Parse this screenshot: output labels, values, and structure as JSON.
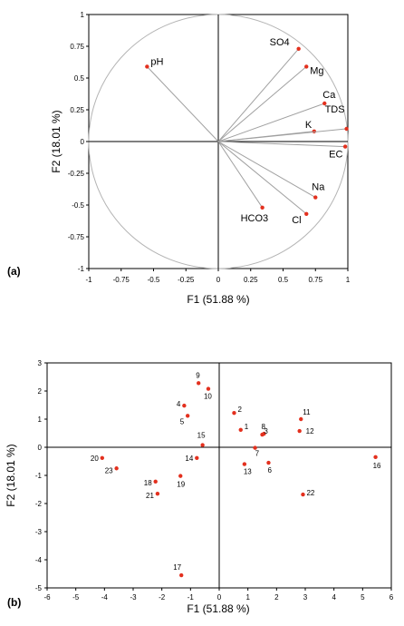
{
  "chart_data": [
    {
      "type": "correlation-circle",
      "panel_label": "(a)",
      "xlabel": "F1 (51.88 %)",
      "ylabel": "F2 (18.01 %)",
      "xlim": [
        -1,
        1
      ],
      "ylim": [
        -1,
        1
      ],
      "xticks": [
        "-1",
        "-0.75",
        "-0.5",
        "-0.25",
        "0",
        "0.25",
        "0.5",
        "0.75",
        "1"
      ],
      "yticks": [
        "1",
        "0.75",
        "0.5",
        "0.25",
        "0",
        "-0.25",
        "-0.5",
        "-0.75",
        "-1"
      ],
      "variables": [
        {
          "label": "pH",
          "x": -0.55,
          "y": 0.59
        },
        {
          "label": "SO4",
          "x": 0.62,
          "y": 0.73
        },
        {
          "label": "Mg",
          "x": 0.68,
          "y": 0.59
        },
        {
          "label": "Ca",
          "x": 0.82,
          "y": 0.3
        },
        {
          "label": "K",
          "x": 0.74,
          "y": 0.08
        },
        {
          "label": "TDS",
          "x": 0.99,
          "y": 0.1
        },
        {
          "label": "EC",
          "x": 0.98,
          "y": -0.04
        },
        {
          "label": "Na",
          "x": 0.75,
          "y": -0.44
        },
        {
          "label": "Cl",
          "x": 0.68,
          "y": -0.57
        },
        {
          "label": "HCO3",
          "x": 0.34,
          "y": -0.52
        }
      ],
      "marker_color": "#e3301e",
      "line_color": "#a0a0a0"
    },
    {
      "type": "scatter",
      "panel_label": "(b)",
      "xlabel": "F1 (51.88 %)",
      "ylabel": "F2 (18.01 %)",
      "xlim": [
        -6,
        6
      ],
      "ylim": [
        -5,
        3
      ],
      "xticks": [
        "-6",
        "-5",
        "-4",
        "-3",
        "-2",
        "-1",
        "0",
        "1",
        "2",
        "3",
        "4",
        "5",
        "6"
      ],
      "yticks": [
        "3",
        "2",
        "1",
        "0",
        "-1",
        "-2",
        "-3",
        "-4",
        "-5"
      ],
      "points": [
        {
          "label": "1",
          "x": 0.75,
          "y": 0.62
        },
        {
          "label": "2",
          "x": 0.52,
          "y": 1.22
        },
        {
          "label": "3",
          "x": 1.56,
          "y": 0.48
        },
        {
          "label": "4",
          "x": -1.22,
          "y": 1.48
        },
        {
          "label": "5",
          "x": -1.1,
          "y": 1.12
        },
        {
          "label": "6",
          "x": 1.72,
          "y": -0.55
        },
        {
          "label": "7",
          "x": 1.25,
          "y": -0.02
        },
        {
          "label": "8",
          "x": 1.5,
          "y": 0.45
        },
        {
          "label": "9",
          "x": -0.72,
          "y": 2.28
        },
        {
          "label": "10",
          "x": -0.38,
          "y": 2.08
        },
        {
          "label": "11",
          "x": 2.85,
          "y": 1.0
        },
        {
          "label": "12",
          "x": 2.8,
          "y": 0.58
        },
        {
          "label": "13",
          "x": 0.88,
          "y": -0.6
        },
        {
          "label": "14",
          "x": -0.78,
          "y": -0.38
        },
        {
          "label": "15",
          "x": -0.58,
          "y": 0.08
        },
        {
          "label": "16",
          "x": 5.45,
          "y": -0.35
        },
        {
          "label": "17",
          "x": -1.32,
          "y": -4.55
        },
        {
          "label": "18",
          "x": -2.22,
          "y": -1.22
        },
        {
          "label": "19",
          "x": -1.35,
          "y": -1.02
        },
        {
          "label": "20",
          "x": -4.08,
          "y": -0.38
        },
        {
          "label": "21",
          "x": -2.15,
          "y": -1.65
        },
        {
          "label": "22",
          "x": 2.92,
          "y": -1.68
        },
        {
          "label": "23",
          "x": -3.58,
          "y": -0.75
        }
      ],
      "marker_color": "#e3301e"
    }
  ]
}
